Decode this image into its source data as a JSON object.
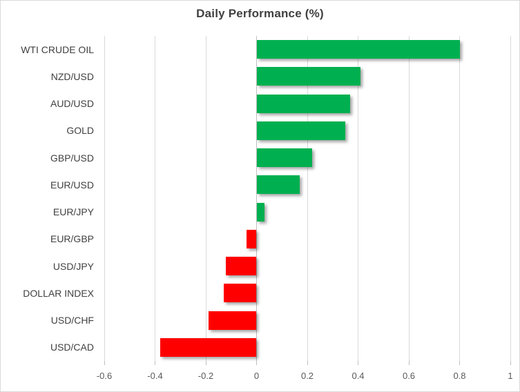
{
  "chart": {
    "title": "Daily Performance (%)"
  },
  "chart_data": {
    "type": "bar",
    "orientation": "horizontal",
    "title": "Daily Performance (%)",
    "categories": [
      "WTI CRUDE OIL",
      "NZD/USD",
      "AUD/USD",
      "GOLD",
      "GBP/USD",
      "EUR/USD",
      "EUR/JPY",
      "EUR/GBP",
      "USD/JPY",
      "DOLLAR INDEX",
      "USD/CHF",
      "USD/CAD"
    ],
    "values": [
      0.8,
      0.41,
      0.37,
      0.35,
      0.22,
      0.17,
      0.03,
      -0.04,
      -0.12,
      -0.13,
      -0.19,
      -0.38
    ],
    "xlabel": "",
    "ylabel": "",
    "xlim": [
      -0.6,
      1.0
    ],
    "xticks": [
      -0.6,
      -0.4,
      -0.2,
      0,
      0.2,
      0.4,
      0.6,
      0.8,
      1
    ],
    "xtick_labels": [
      "-0.6",
      "-0.4",
      "-0.2",
      "0",
      "0.2",
      "0.4",
      "0.6",
      "0.8",
      "1"
    ],
    "grid": true,
    "legend": false,
    "colors": {
      "positive": "#00b050",
      "negative": "#ff0000",
      "gridline": "#d9d9d9",
      "zero_axis": "#bfbfbf",
      "title_text": "#404040",
      "category_text": "#404040",
      "tick_text": "#595959"
    }
  }
}
